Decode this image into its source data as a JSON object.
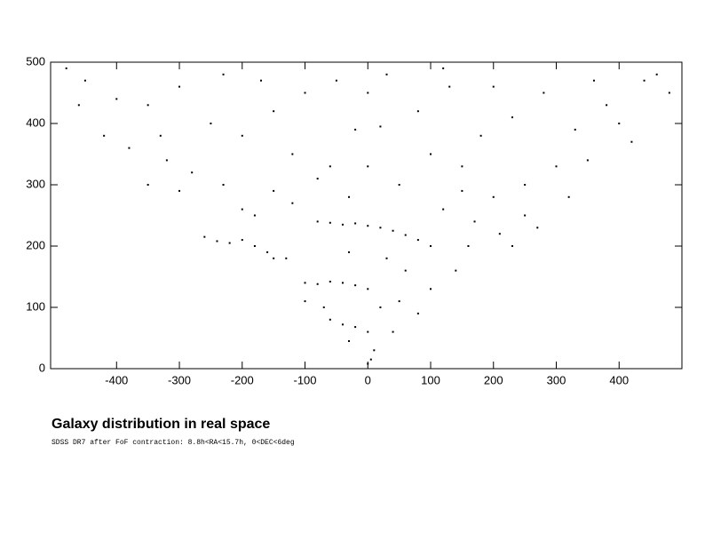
{
  "chart_data": {
    "type": "scatter",
    "title": "Galaxy distribution in real space",
    "subtitle": "SDSS DR7 after FoF contraction: 8.8h<RA<15.7h, 0<DEC<6deg",
    "xlim": [
      -505,
      500
    ],
    "ylim": [
      0,
      500
    ],
    "xticks": [
      -400,
      -300,
      -200,
      -100,
      0,
      100,
      200,
      300,
      400
    ],
    "yticks": [
      0,
      100,
      200,
      300,
      400,
      500
    ],
    "color": "#000000",
    "x": [
      -80,
      -60,
      -40,
      -20,
      0,
      20,
      40,
      60,
      80,
      100,
      -260,
      -240,
      -220,
      -200,
      -180,
      -160,
      -150,
      -100,
      -80,
      -60,
      -40,
      -20,
      0,
      -60,
      -40,
      -20,
      0,
      10,
      5,
      0,
      -230,
      -150,
      -80,
      50,
      150,
      200,
      250,
      -450,
      -400,
      -350,
      -300,
      -250,
      -200,
      -150,
      -100,
      -50,
      -20,
      20,
      30,
      80,
      130,
      180,
      230,
      280,
      330,
      380,
      420,
      440,
      460,
      -420,
      -380,
      -320,
      -280,
      300,
      350,
      -120,
      100,
      0,
      -30,
      120,
      170,
      210,
      250,
      -200,
      -120,
      -300,
      60,
      100,
      140,
      -130,
      30,
      -30,
      50,
      -100,
      20,
      80,
      -70,
      40,
      -30,
      160,
      -180,
      230,
      270,
      -350,
      -330,
      320,
      400,
      -460,
      -480,
      480,
      360,
      -230,
      0,
      150,
      -60,
      200,
      -170,
      120
    ],
    "y": [
      240,
      238,
      235,
      237,
      233,
      230,
      225,
      218,
      210,
      200,
      215,
      208,
      205,
      210,
      200,
      190,
      180,
      140,
      138,
      142,
      140,
      136,
      130,
      80,
      72,
      68,
      60,
      30,
      15,
      8,
      300,
      290,
      310,
      300,
      290,
      280,
      300,
      470,
      440,
      430,
      460,
      400,
      380,
      420,
      450,
      470,
      390,
      395,
      480,
      420,
      460,
      380,
      410,
      450,
      390,
      430,
      370,
      470,
      480,
      380,
      360,
      340,
      320,
      330,
      340,
      350,
      350,
      330,
      280,
      260,
      240,
      220,
      250,
      260,
      270,
      290,
      160,
      130,
      160,
      180,
      180,
      190,
      110,
      110,
      100,
      90,
      100,
      60,
      45,
      200,
      250,
      200,
      230,
      300,
      380,
      280,
      400,
      430,
      490,
      450,
      470,
      480,
      450,
      330,
      330,
      460,
      470,
      490
    ]
  }
}
